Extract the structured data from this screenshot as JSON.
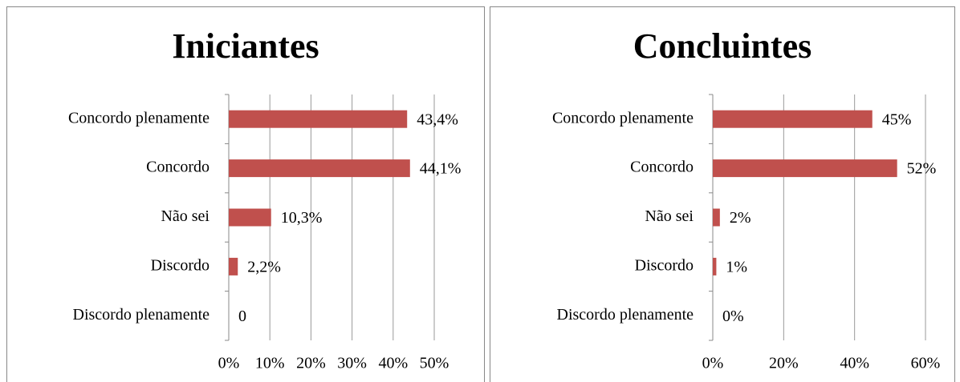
{
  "chart_data": [
    {
      "type": "bar",
      "title": "Iniciantes",
      "categories": [
        "Concordo plenamente",
        "Concordo",
        "Não sei",
        "Discordo",
        "Discordo plenamente"
      ],
      "values": [
        43.4,
        44.1,
        10.3,
        2.2,
        0
      ],
      "value_labels": [
        "43,4%",
        "44,1%",
        "10,3%",
        "2,2%",
        "0"
      ],
      "color": "#c0504d",
      "orientation": "horizontal",
      "grid": true,
      "xlim": [
        0,
        50
      ],
      "xticks": [
        {
          "value": 0,
          "label": "0%"
        },
        {
          "value": 10,
          "label": "10%"
        },
        {
          "value": 20,
          "label": "20%"
        },
        {
          "value": 30,
          "label": "30%"
        },
        {
          "value": 40,
          "label": "40%"
        },
        {
          "value": 50,
          "label": "50%"
        }
      ]
    },
    {
      "type": "bar",
      "title": "Concluintes",
      "categories": [
        "Concordo plenamente",
        "Concordo",
        "Não sei",
        "Discordo",
        "Discordo plenamente"
      ],
      "values": [
        45,
        52,
        2,
        1,
        0
      ],
      "value_labels": [
        "45%",
        "52%",
        "2%",
        "1%",
        "0%"
      ],
      "color": "#c0504d",
      "orientation": "horizontal",
      "grid": true,
      "xlim": [
        0,
        60
      ],
      "xticks": [
        {
          "value": 0,
          "label": "0%"
        },
        {
          "value": 20,
          "label": "20%"
        },
        {
          "value": 40,
          "label": "40%"
        },
        {
          "value": 60,
          "label": "60%"
        }
      ]
    }
  ]
}
